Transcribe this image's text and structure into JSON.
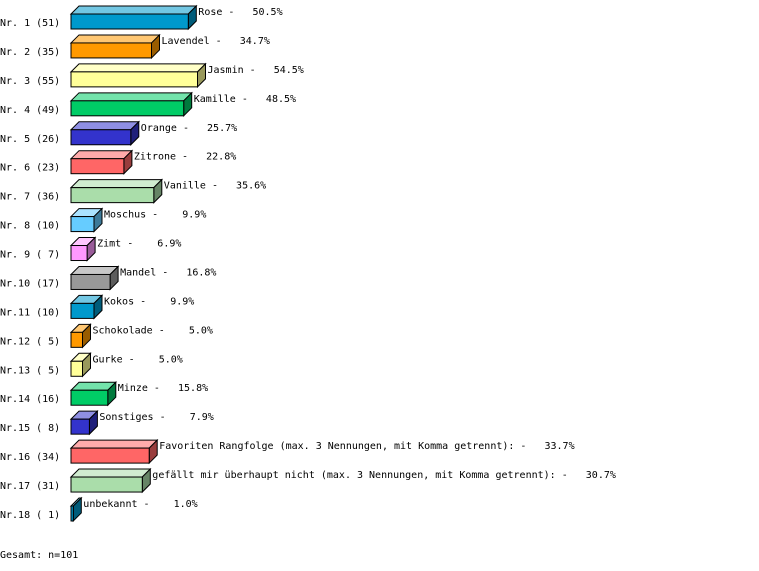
{
  "chart_data": {
    "type": "bar",
    "orientation": "horizontal",
    "style": "3d",
    "grid": false,
    "categories": [
      "Rose",
      "Lavendel",
      "Jasmin",
      "Kamille",
      "Orange",
      "Zitrone",
      "Vanille",
      "Moschus",
      "Zimt",
      "Mandel",
      "Kokos",
      "Schokolade",
      "Gurke",
      "Minze",
      "Sonstiges",
      "Favoriten Rangfolge (max. 3 Nennungen, mit Komma getrennt):",
      "gefällt mir überhaupt nicht (max. 3 Nennungen, mit Komma getrennt):",
      "unbekannt"
    ],
    "row_labels": [
      "Nr. 1 (51)",
      "Nr. 2 (35)",
      "Nr. 3 (55)",
      "Nr. 4 (49)",
      "Nr. 5 (26)",
      "Nr. 6 (23)",
      "Nr. 7 (36)",
      "Nr. 8 (10)",
      "Nr. 9 ( 7)",
      "Nr.10 (17)",
      "Nr.11 (10)",
      "Nr.12 ( 5)",
      "Nr.13 ( 5)",
      "Nr.14 (16)",
      "Nr.15 ( 8)",
      "Nr.16 (34)",
      "Nr.17 (31)",
      "Nr.18 ( 1)"
    ],
    "counts": [
      51,
      35,
      55,
      49,
      26,
      23,
      36,
      10,
      7,
      17,
      10,
      5,
      5,
      16,
      8,
      34,
      31,
      1
    ],
    "percent_labels": [
      "50.5%",
      "34.7%",
      "54.5%",
      "48.5%",
      "25.7%",
      "22.8%",
      "35.6%",
      "9.9%",
      "6.9%",
      "16.8%",
      "9.9%",
      "5.0%",
      "5.0%",
      "15.8%",
      "7.9%",
      "33.7%",
      "30.7%",
      "1.0%"
    ],
    "colors": [
      "#0099cc",
      "#ff9900",
      "#ffff99",
      "#00cc66",
      "#3333cc",
      "#ff6666",
      "#aaddaa",
      "#66ccff",
      "#ff99ff",
      "#999999",
      "#0099cc",
      "#ff9900",
      "#ffff99",
      "#00cc66",
      "#3333cc",
      "#ff6666",
      "#aaddaa",
      "#0099cc"
    ],
    "footer": "Gesamt: n=101"
  }
}
